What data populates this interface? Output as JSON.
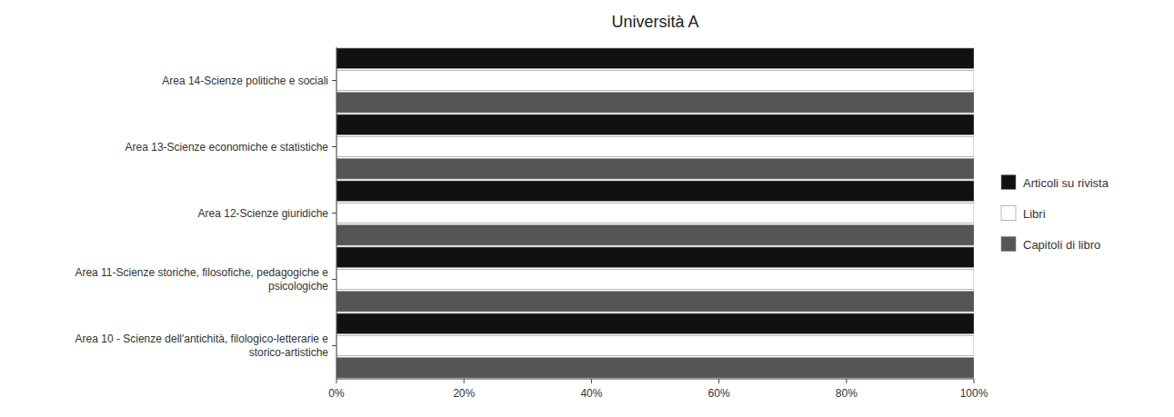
{
  "chart_data": {
    "type": "bar",
    "orientation": "horizontal",
    "title": "Università A",
    "categories": [
      "Area 10 - Scienze dell'antichità, filologico-letterarie e\nstorico-artistiche",
      "Area 11-Scienze storiche, filosofiche, pedagogiche e\npsicologiche",
      "Area 12-Scienze giuridiche",
      "Area 13-Scienze economiche e statistiche",
      "Area 14-Scienze politiche e sociali"
    ],
    "series": [
      {
        "name": "Articoli su rivista",
        "color": "#111111",
        "values": [
          1.0,
          1.0,
          1.0,
          1.0,
          1.0
        ]
      },
      {
        "name": "Libri",
        "color": "#ffffff",
        "values": [
          1.0,
          1.0,
          1.0,
          1.0,
          1.0
        ]
      },
      {
        "name": "Capitoli di libro",
        "color": "#555555",
        "values": [
          1.0,
          1.0,
          1.0,
          1.0,
          1.0
        ]
      }
    ],
    "xlim": [
      0,
      1.0
    ],
    "xticks": [
      {
        "value": 0.0,
        "label": "0%"
      },
      {
        "value": 0.2,
        "label": "20%"
      },
      {
        "value": 0.4,
        "label": "40%"
      },
      {
        "value": 0.6,
        "label": "60%"
      },
      {
        "value": 0.8,
        "label": "80%"
      },
      {
        "value": 1.0,
        "label": "100%"
      }
    ],
    "grid": false,
    "legend": "right"
  }
}
